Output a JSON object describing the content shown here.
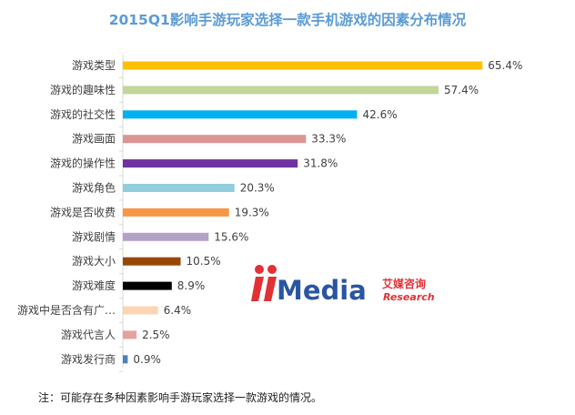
{
  "chart_data": {
    "type": "bar",
    "orientation": "horizontal",
    "title": "2015Q1影响手游玩家选择一款手机游戏的因素分布情况",
    "categories": [
      "游戏类型",
      "游戏的趣味性",
      "游戏的社交性",
      "游戏画面",
      "游戏的操作性",
      "游戏角色",
      "游戏是否收费",
      "游戏剧情",
      "游戏大小",
      "游戏难度",
      "游戏中是否含有广…",
      "游戏代言人",
      "游戏发行商"
    ],
    "values": [
      65.4,
      57.4,
      42.6,
      33.3,
      31.8,
      20.3,
      19.3,
      15.6,
      10.5,
      8.9,
      6.4,
      2.5,
      0.9
    ],
    "value_labels": [
      "65.4%",
      "57.4%",
      "42.6%",
      "33.3%",
      "31.8%",
      "20.3%",
      "19.3%",
      "15.6%",
      "10.5%",
      "8.9%",
      "6.4%",
      "2.5%",
      "0.9%"
    ],
    "colors": [
      "#ffc000",
      "#c3d69b",
      "#00b0f0",
      "#da9694",
      "#7030a0",
      "#92cddc",
      "#f79646",
      "#b3a2c7",
      "#974706",
      "#000000",
      "#fcd5b4",
      "#e6a09e",
      "#4f81bd"
    ],
    "xlim": [
      0,
      70
    ],
    "grid": false,
    "legend": "none"
  },
  "footnote": "注：可能存在多种因素影响手游玩家选择一款游戏的情况。",
  "watermark": {
    "brand": "Media",
    "cn": "艾媒咨询",
    "en": "Research",
    "colors": {
      "primary": "#1f4e9c",
      "accent": "#e0262b"
    }
  }
}
